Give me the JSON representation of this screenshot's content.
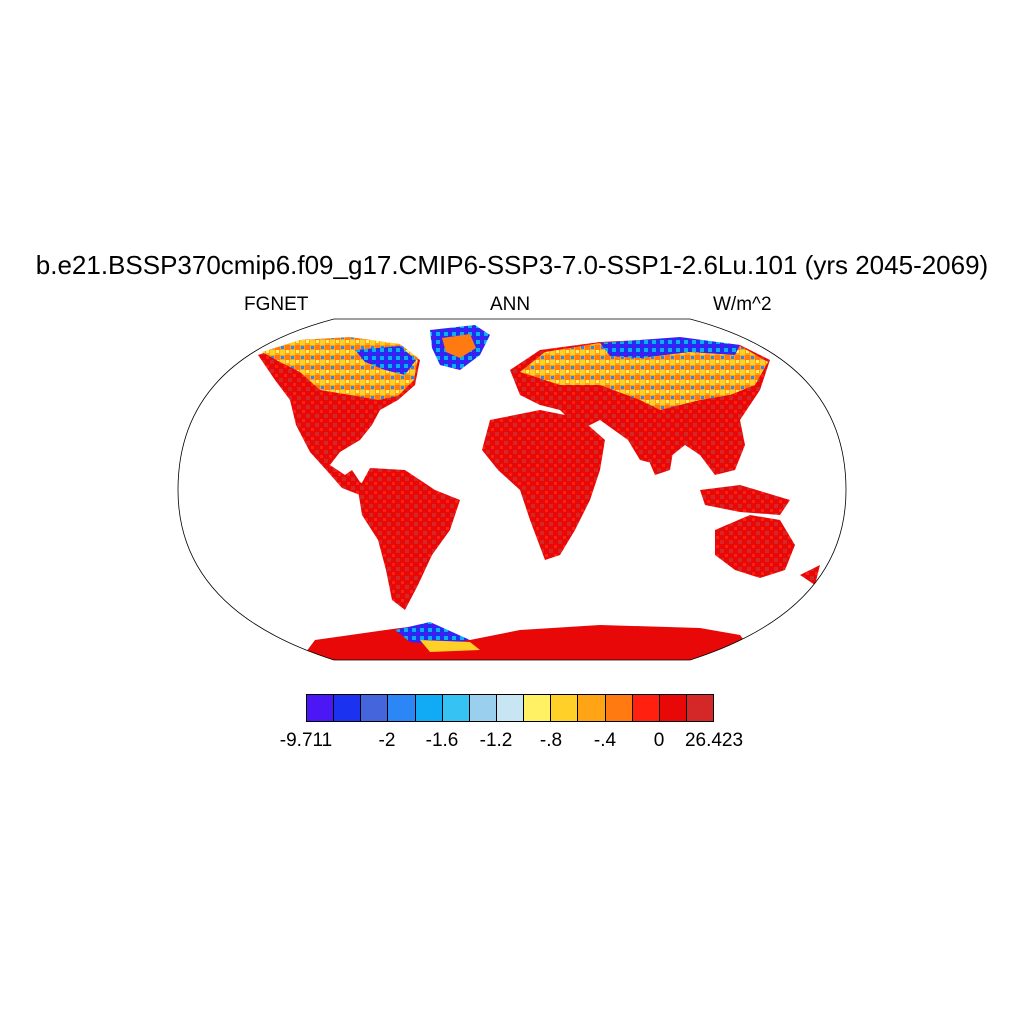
{
  "figure": {
    "title": "b.e21.BSSP370cmip6.f09_g17.CMIP6-SSP3-7.0-SSP1-2.6Lu.101 (yrs 2045-2069)",
    "left_label": "FGNET",
    "center_label": "ANN",
    "right_label": "W/m^2"
  },
  "map": {
    "projection": "Robinson",
    "field": "FGNET",
    "units": "W/m^2"
  },
  "colorbar": {
    "colors": [
      "#4b18f5",
      "#1b32f0",
      "#4565dd",
      "#2c86f5",
      "#11aaf5",
      "#36c2f2",
      "#9ad0ee",
      "#c8e5f4",
      "#fff163",
      "#ffd028",
      "#ffa515",
      "#ff7a10",
      "#ff2010",
      "#e80808",
      "#d42828"
    ],
    "labels": [
      "-9.711",
      "-2",
      "-1.6",
      "-1.2",
      "-.8",
      "-.4",
      "0",
      "26.423"
    ]
  }
}
